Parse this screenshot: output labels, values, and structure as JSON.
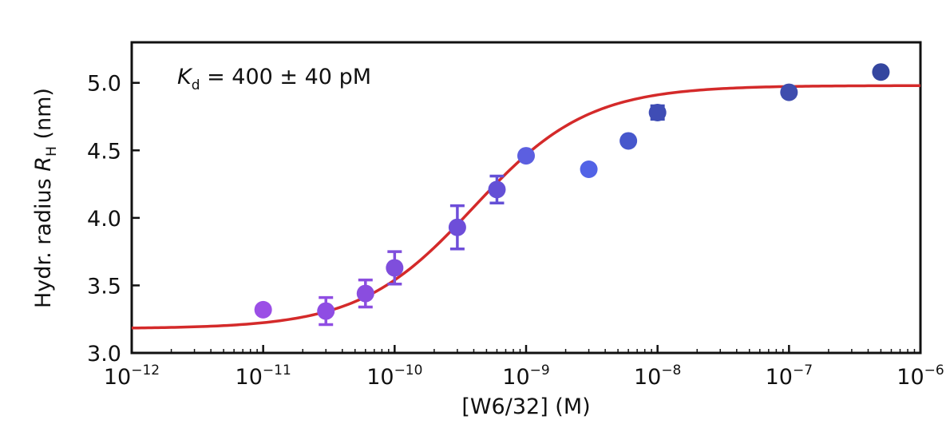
{
  "chart_data": {
    "type": "scatter",
    "title": "",
    "xlabel": "[W6/32] (M)",
    "ylabel": {
      "main": "Hydr. radius ",
      "symbol": "R",
      "subscript": "H",
      "unit": " (nm)"
    },
    "xscale": "log",
    "xlim": [
      1e-12,
      1e-06
    ],
    "ylim": [
      3.0,
      5.3
    ],
    "grid": false,
    "x_ticks": [
      {
        "base": "10",
        "exp": "−12",
        "value": 1e-12
      },
      {
        "base": "10",
        "exp": "−11",
        "value": 1e-11
      },
      {
        "base": "10",
        "exp": "−10",
        "value": 1e-10
      },
      {
        "base": "10",
        "exp": "−9",
        "value": 1e-09
      },
      {
        "base": "10",
        "exp": "−8",
        "value": 1e-08
      },
      {
        "base": "10",
        "exp": "−7",
        "value": 1e-07
      },
      {
        "base": "10",
        "exp": "−6",
        "value": 1e-06
      }
    ],
    "y_ticks": [
      "3.0",
      "3.5",
      "4.0",
      "4.5",
      "5.0"
    ],
    "annotation": {
      "symbol": "K",
      "subscript": "d",
      "text": " = 400 ± 40 pM"
    },
    "points": [
      {
        "x": 1e-11,
        "y": 3.32,
        "err": 0.02,
        "color": "#9b4fe6"
      },
      {
        "x": 3e-11,
        "y": 3.31,
        "err": 0.1,
        "color": "#8f4de3"
      },
      {
        "x": 6e-11,
        "y": 3.44,
        "err": 0.1,
        "color": "#8a4ddf"
      },
      {
        "x": 1e-10,
        "y": 3.63,
        "err": 0.12,
        "color": "#7f4edc"
      },
      {
        "x": 3e-10,
        "y": 3.93,
        "err": 0.16,
        "color": "#6e4ed9"
      },
      {
        "x": 6e-10,
        "y": 4.21,
        "err": 0.1,
        "color": "#6450d6"
      },
      {
        "x": 1e-09,
        "y": 4.46,
        "err": 0.02,
        "color": "#5c5fe0"
      },
      {
        "x": 3e-09,
        "y": 4.36,
        "err": 0.02,
        "color": "#5263e6"
      },
      {
        "x": 6e-09,
        "y": 4.57,
        "err": 0.02,
        "color": "#4657cc"
      },
      {
        "x": 1e-08,
        "y": 4.78,
        "err": 0.05,
        "color": "#3f4db5"
      },
      {
        "x": 1e-07,
        "y": 4.93,
        "err": 0.03,
        "color": "#3f4dae"
      },
      {
        "x": 5e-07,
        "y": 5.08,
        "err": 0.02,
        "color": "#34469f"
      }
    ],
    "fit": {
      "model": "binding curve",
      "kd": 4e-10,
      "ymin": 3.18,
      "ymax": 4.98,
      "color": "#d42a2a"
    }
  }
}
